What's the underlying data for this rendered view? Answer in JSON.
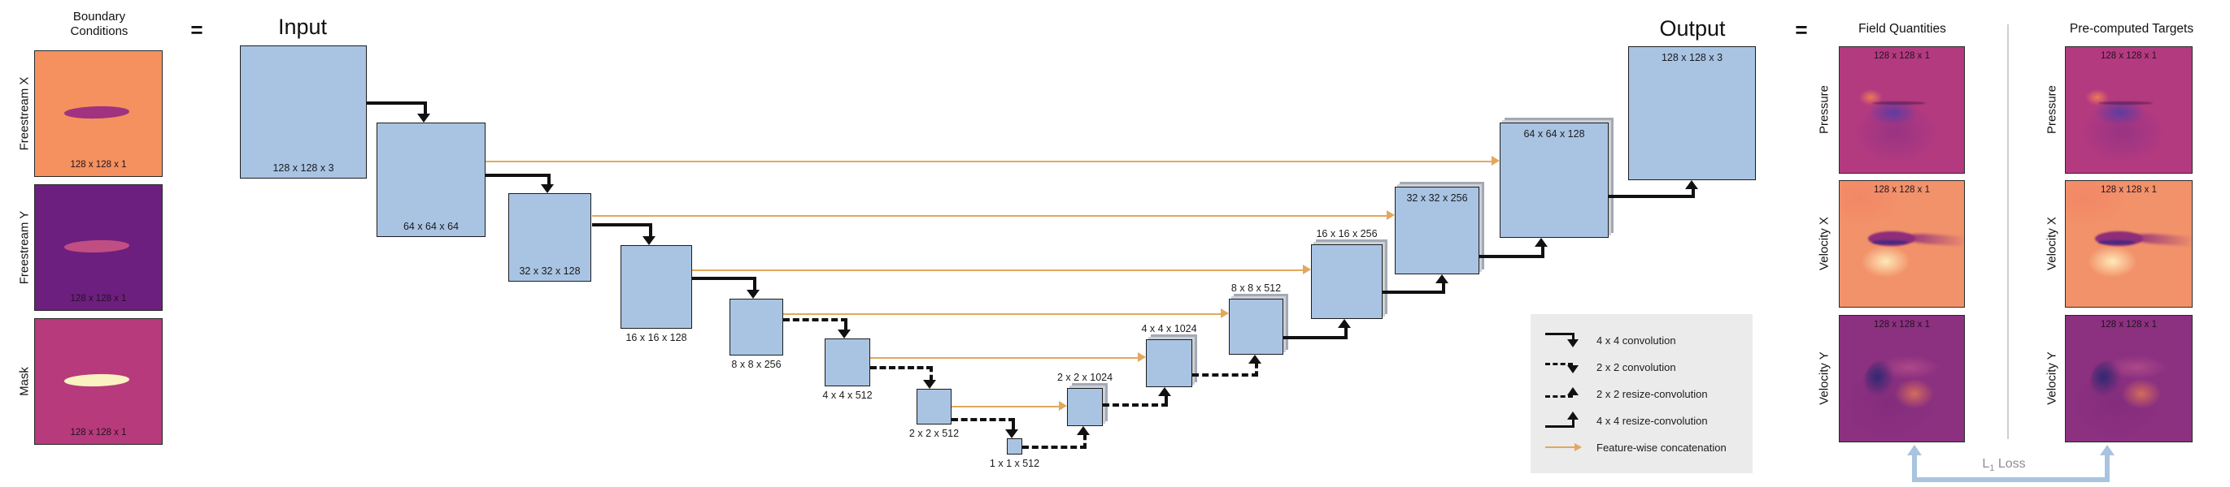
{
  "colors": {
    "block_fill": "#a9c4e3",
    "block_border": "#1c1c1c",
    "arrow_black": "#111111",
    "concat_orange": "#e2a85c",
    "legend_bg": "#ebebeb",
    "loss_blue": "#a9c4e1",
    "freestream_x_bg": "#f4915e",
    "freestream_y_bg": "#6d1f7f",
    "mask_bg": "#b73a7c",
    "pressure_bg": "#b43a80",
    "velocity_x_bg": "#f2926a",
    "velocity_y_bg": "#8c3080"
  },
  "boundary": {
    "title_line1": "Boundary",
    "title_line2": "Conditions",
    "equals": "=",
    "channels": [
      {
        "name": "Freestream X",
        "dim": "128 x 128 x 1"
      },
      {
        "name": "Freestream Y",
        "dim": "128 x 128 x 1"
      },
      {
        "name": "Mask",
        "dim": "128 x 128 x 1"
      }
    ]
  },
  "network": {
    "input_title": "Input",
    "output_title": "Output",
    "encoder": [
      {
        "label": "128 x 128 x 3"
      },
      {
        "label": "64 x 64 x 64"
      },
      {
        "label": "32 x 32 x 128"
      },
      {
        "label": "16 x 16 x 128"
      },
      {
        "label": "8 x 8 x 256"
      },
      {
        "label": "4 x 4 x 512"
      },
      {
        "label": "2 x 2 x 512"
      },
      {
        "label": "1 x 1 x 512"
      }
    ],
    "decoder": [
      {
        "label": "2 x 2 x 1024"
      },
      {
        "label": "4 x 4 x 1024"
      },
      {
        "label": "8 x 8 x 512"
      },
      {
        "label": "16 x 16 x 256"
      },
      {
        "label": "32 x 32 x 256"
      },
      {
        "label": "64 x 64 x 128"
      },
      {
        "label": "128 x 128 x 3"
      }
    ]
  },
  "legend": {
    "items": [
      {
        "icon": "conv4-arrow",
        "label": "4 x 4 convolution"
      },
      {
        "icon": "conv2-arrow",
        "label": "2 x 2 convolution"
      },
      {
        "icon": "resize2-arrow",
        "label": "2 x 2 resize-convolution"
      },
      {
        "icon": "resize4-arrow",
        "label": "4 x 4 resize-convolution"
      },
      {
        "icon": "concat-arrow",
        "label": "Feature-wise concatenation"
      }
    ]
  },
  "outputs": {
    "equals": "=",
    "field_quantities_title": "Field Quantities",
    "targets_title": "Pre-computed Targets",
    "rows": [
      {
        "name": "Pressure",
        "dim": "128 x 128 x 1"
      },
      {
        "name": "Velocity X",
        "dim": "128 x 128 x 1"
      },
      {
        "name": "Velocity Y",
        "dim": "128 x 128 x 1"
      }
    ],
    "loss": {
      "prefix": "L",
      "sub": "1",
      "suffix": "Loss"
    }
  }
}
